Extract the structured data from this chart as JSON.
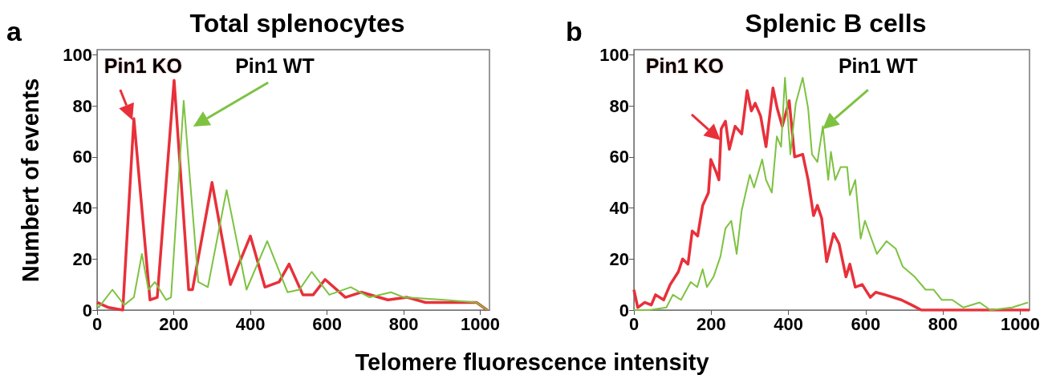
{
  "chart_data": [
    {
      "type": "line",
      "title": "Total splenocytes",
      "xlabel": "Telomere fluorescence intensity",
      "ylabel": "Numbert of events",
      "annotations": [
        "a"
      ],
      "xlim": [
        0,
        1024
      ],
      "ylim": [
        0,
        102
      ],
      "xticks": [
        0,
        200,
        400,
        600,
        800,
        1000
      ],
      "yticks": [
        0,
        20,
        40,
        60,
        80,
        100
      ],
      "series": [
        {
          "name": "Pin1 KO",
          "color": "#e8303a",
          "x": [
            0,
            30,
            67,
            96,
            138,
            157,
            201,
            239,
            249,
            300,
            348,
            400,
            438,
            475,
            501,
            537,
            564,
            595,
            648,
            690,
            759,
            809,
            857,
            990,
            1018
          ],
          "values": [
            3,
            1,
            0,
            75,
            4,
            5,
            90,
            8,
            8,
            50,
            10,
            29,
            9,
            11,
            18,
            6,
            6,
            12,
            5,
            7,
            4,
            5,
            3,
            3,
            0
          ]
        },
        {
          "name": "Pin1 WT",
          "color": "#7dc241",
          "x": [
            0,
            4,
            40,
            71,
            96,
            117,
            134,
            151,
            180,
            193,
            226,
            264,
            289,
            338,
            390,
            444,
            497,
            528,
            560,
            606,
            662,
            711,
            767,
            801,
            906,
            990,
            1018
          ],
          "values": [
            2,
            1,
            8,
            2,
            5,
            22,
            8,
            11,
            4,
            5,
            82,
            11,
            9,
            47,
            8,
            27,
            7,
            8,
            15,
            6,
            9,
            5,
            7,
            5,
            4,
            3,
            0
          ]
        }
      ]
    },
    {
      "type": "line",
      "title": "Splenic B cells",
      "annotations": [
        "b"
      ],
      "xlim": [
        0,
        1024
      ],
      "ylim": [
        0,
        102
      ],
      "xticks": [
        0,
        200,
        400,
        600,
        800,
        1000
      ],
      "yticks": [
        0,
        20,
        40,
        60,
        80,
        100
      ],
      "series": [
        {
          "name": "Pin1 KO",
          "color": "#e8303a",
          "x": [
            0,
            10,
            28,
            45,
            56,
            77,
            94,
            115,
            126,
            140,
            151,
            165,
            178,
            193,
            199,
            213,
            220,
            226,
            237,
            247,
            262,
            279,
            293,
            304,
            314,
            328,
            342,
            360,
            371,
            384,
            402,
            416,
            437,
            451,
            465,
            475,
            486,
            499,
            517,
            531,
            549,
            559,
            573,
            591,
            612,
            626,
            650,
            692,
            719,
            744,
            1024
          ],
          "values": [
            8,
            1,
            3,
            2,
            6,
            4,
            10,
            15,
            20,
            18,
            31,
            29,
            41,
            46,
            59,
            54,
            51,
            71,
            74,
            63,
            72,
            69,
            86,
            78,
            81,
            76,
            64,
            87,
            79,
            72,
            82,
            60,
            61,
            51,
            37,
            41,
            36,
            19,
            30,
            26,
            13,
            18,
            9,
            10,
            5,
            7,
            6,
            4,
            2,
            0,
            0
          ]
        },
        {
          "name": "Pin1 WT",
          "color": "#7dc241",
          "x": [
            0,
            40,
            84,
            101,
            122,
            147,
            164,
            178,
            189,
            206,
            224,
            237,
            252,
            266,
            279,
            300,
            311,
            332,
            342,
            357,
            370,
            381,
            391,
            405,
            419,
            437,
            451,
            461,
            475,
            489,
            503,
            510,
            521,
            535,
            552,
            559,
            573,
            587,
            598,
            629,
            654,
            678,
            696,
            727,
            755,
            776,
            797,
            824,
            853,
            895,
            923,
            979,
            1020
          ],
          "values": [
            0,
            0,
            1,
            6,
            4,
            11,
            9,
            16,
            9,
            13,
            21,
            32,
            35,
            22,
            39,
            53,
            48,
            59,
            51,
            46,
            68,
            64,
            91,
            61,
            81,
            91,
            79,
            61,
            58,
            72,
            51,
            62,
            51,
            56,
            56,
            45,
            51,
            28,
            35,
            22,
            27,
            24,
            17,
            13,
            8,
            8,
            4,
            4,
            1,
            3,
            0,
            1,
            3
          ]
        }
      ]
    }
  ]
}
